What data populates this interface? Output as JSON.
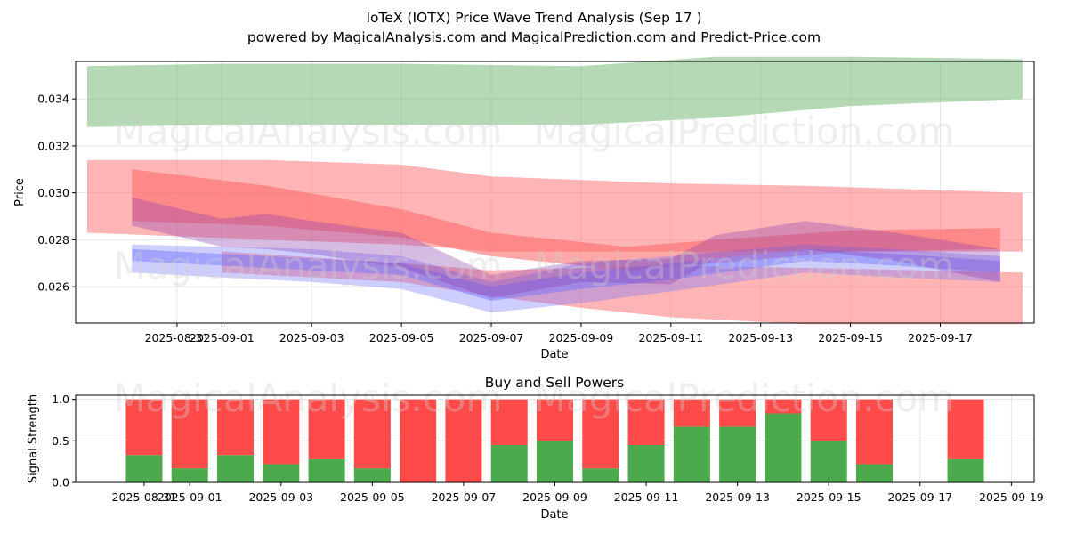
{
  "header": {
    "title": "IoTeX (IOTX) Price Wave Trend Analysis (Sep 17 )",
    "subtitle": "powered by MagicalAnalysis.com and MagicalPrediction.com and Predict-Price.com"
  },
  "watermarks": [
    "MagicalAnalysis.com",
    "MagicalPrediction.com"
  ],
  "colors": {
    "green_band": "#6ab46a",
    "red_band": "#ff6b6b",
    "blue_band": "#6f6fff",
    "purple_band": "#8a3fb0",
    "buy": "#4caa4c",
    "sell": "#ff4a4a",
    "grid": "#e6e6e6"
  },
  "chart_data": [
    {
      "type": "area",
      "title": "",
      "xlabel": "Date",
      "ylabel": "Price",
      "grid": true,
      "x_range": [
        "2025-08-29",
        "2025-09-18T20:00"
      ],
      "ylim": [
        0.02445,
        0.0356
      ],
      "x_ticks": [
        "2025-08-31",
        "2025-09-01",
        "2025-09-03",
        "2025-09-05",
        "2025-09-07",
        "2025-09-09",
        "2025-09-11",
        "2025-09-13",
        "2025-09-15",
        "2025-09-17"
      ],
      "x_tick_labels": [
        "2025-08-31",
        "2025-09-01",
        "2025-09-03",
        "2025-09-05",
        "2025-09-07",
        "2025-09-09",
        "2025-09-11",
        "2025-09-13",
        "2025-09-15",
        "2025-09-17"
      ],
      "y_ticks": [
        0.026,
        0.028,
        0.03,
        0.032,
        0.034
      ],
      "y_tick_labels": [
        "0.026",
        "0.028",
        "0.030",
        "0.032",
        "0.034"
      ],
      "series": [
        {
          "name": "green upper band",
          "color_key": "green_band",
          "opacity": 0.5,
          "x": [
            "2025-08-29",
            "2025-09-01",
            "2025-09-05",
            "2025-09-09",
            "2025-09-12",
            "2025-09-15",
            "2025-09-18T20:00"
          ],
          "upper": [
            0.0354,
            0.0355,
            0.0355,
            0.0354,
            0.0358,
            0.0358,
            0.0357
          ],
          "lower": [
            0.0328,
            0.0329,
            0.0329,
            0.0329,
            0.0332,
            0.0337,
            0.034
          ]
        },
        {
          "name": "red wide band",
          "color_key": "red_band",
          "opacity": 0.5,
          "x": [
            "2025-08-29",
            "2025-09-02",
            "2025-09-05",
            "2025-09-07",
            "2025-09-11",
            "2025-09-14",
            "2025-09-18T20:00"
          ],
          "upper": [
            0.0314,
            0.0314,
            0.0312,
            0.0307,
            0.0304,
            0.0303,
            0.03
          ],
          "lower": [
            0.0283,
            0.028,
            0.0278,
            0.0275,
            0.0275,
            0.0275,
            0.0275
          ]
        },
        {
          "name": "red lower band",
          "color_key": "red_band",
          "opacity": 0.5,
          "x": [
            "2025-09-01",
            "2025-09-05",
            "2025-09-07",
            "2025-09-09",
            "2025-09-11",
            "2025-09-14",
            "2025-09-18T20:00"
          ],
          "upper": [
            0.0275,
            0.027,
            0.0267,
            0.0268,
            0.0269,
            0.0268,
            0.0266
          ],
          "lower": [
            0.0266,
            0.0262,
            0.0256,
            0.0251,
            0.0247,
            0.0244,
            0.0244
          ]
        },
        {
          "name": "red falling band",
          "color_key": "red_band",
          "opacity": 0.6,
          "x": [
            "2025-08-30",
            "2025-09-02",
            "2025-09-05",
            "2025-09-07",
            "2025-09-10",
            "2025-09-12",
            "2025-09-15",
            "2025-09-18T08:00"
          ],
          "upper": [
            0.031,
            0.0303,
            0.0293,
            0.0283,
            0.0277,
            0.028,
            0.0284,
            0.0285
          ],
          "lower": [
            0.0288,
            0.0286,
            0.0281,
            0.0273,
            0.0267,
            0.027,
            0.0275,
            0.0276
          ]
        },
        {
          "name": "blue band",
          "color_key": "blue_band",
          "opacity": 0.35,
          "x": [
            "2025-08-30",
            "2025-09-01",
            "2025-09-03",
            "2025-09-05",
            "2025-09-07",
            "2025-09-09",
            "2025-09-11",
            "2025-09-14",
            "2025-09-16",
            "2025-09-18T08:00"
          ],
          "upper": [
            0.0278,
            0.0277,
            0.0276,
            0.0273,
            0.0262,
            0.027,
            0.0273,
            0.0278,
            0.0276,
            0.0273
          ],
          "lower": [
            0.0266,
            0.0264,
            0.0262,
            0.0259,
            0.0249,
            0.0253,
            0.0258,
            0.0266,
            0.0264,
            0.0262
          ]
        },
        {
          "name": "blue inner band",
          "color_key": "blue_band",
          "opacity": 0.45,
          "x": [
            "2025-08-30",
            "2025-09-01",
            "2025-09-03",
            "2025-09-05",
            "2025-09-07",
            "2025-09-09",
            "2025-09-11",
            "2025-09-14",
            "2025-09-16",
            "2025-09-18T08:00"
          ],
          "upper": [
            0.0276,
            0.0274,
            0.0272,
            0.027,
            0.026,
            0.0266,
            0.027,
            0.0276,
            0.0274,
            0.0271
          ],
          "lower": [
            0.0271,
            0.0269,
            0.0267,
            0.0265,
            0.0254,
            0.0259,
            0.0263,
            0.0271,
            0.0269,
            0.0266
          ]
        },
        {
          "name": "purple band",
          "color_key": "purple_band",
          "opacity": 0.35,
          "x": [
            "2025-08-30",
            "2025-09-01",
            "2025-09-02",
            "2025-09-03",
            "2025-09-05",
            "2025-09-07",
            "2025-09-09",
            "2025-09-11",
            "2025-09-12",
            "2025-09-14",
            "2025-09-16",
            "2025-09-18T08:00"
          ],
          "upper": [
            0.0298,
            0.0289,
            0.0291,
            0.0288,
            0.0283,
            0.0265,
            0.0271,
            0.0272,
            0.0282,
            0.0288,
            0.0283,
            0.0276
          ],
          "lower": [
            0.0286,
            0.0277,
            0.0276,
            0.0274,
            0.0268,
            0.0255,
            0.0262,
            0.0261,
            0.0272,
            0.0276,
            0.0271,
            0.0262
          ]
        }
      ]
    },
    {
      "type": "bar",
      "title": "Buy and Sell Powers",
      "xlabel": "Date",
      "ylabel": "Signal Strength",
      "grid": true,
      "ylim": [
        0,
        1.05
      ],
      "x_range": [
        "2025-08-29T12:00",
        "2025-09-19T12:00"
      ],
      "x_ticks": [
        "2025-08-31",
        "2025-09-01",
        "2025-09-03",
        "2025-09-05",
        "2025-09-07",
        "2025-09-09",
        "2025-09-11",
        "2025-09-13",
        "2025-09-15",
        "2025-09-17",
        "2025-09-19"
      ],
      "x_tick_labels": [
        "2025-08-31",
        "2025-09-01",
        "2025-09-03",
        "2025-09-05",
        "2025-09-07",
        "2025-09-09",
        "2025-09-11",
        "2025-09-13",
        "2025-09-15",
        "2025-09-17",
        "2025-09-19"
      ],
      "y_ticks": [
        0.0,
        0.5,
        1.0
      ],
      "y_tick_labels": [
        "0.0",
        "0.5",
        "1.0"
      ],
      "categories": [
        "2025-08-31",
        "2025-09-01",
        "2025-09-02",
        "2025-09-03",
        "2025-09-04",
        "2025-09-05",
        "2025-09-06",
        "2025-09-07",
        "2025-09-08",
        "2025-09-09",
        "2025-09-10",
        "2025-09-11",
        "2025-09-12",
        "2025-09-13",
        "2025-09-14",
        "2025-09-15",
        "2025-09-16",
        "2025-09-18"
      ],
      "series": [
        {
          "name": "Buy",
          "color_key": "buy",
          "values": [
            0.33,
            0.17,
            0.33,
            0.22,
            0.28,
            0.17,
            0.0,
            0.0,
            0.45,
            0.5,
            0.17,
            0.45,
            0.67,
            0.67,
            0.83,
            0.5,
            0.22,
            0.28
          ]
        },
        {
          "name": "Sell",
          "color_key": "sell",
          "values": [
            0.67,
            0.83,
            0.67,
            0.78,
            0.72,
            0.83,
            1.0,
            1.0,
            0.55,
            0.5,
            0.83,
            0.55,
            0.33,
            0.33,
            0.17,
            0.5,
            0.78,
            0.72
          ]
        }
      ]
    }
  ]
}
